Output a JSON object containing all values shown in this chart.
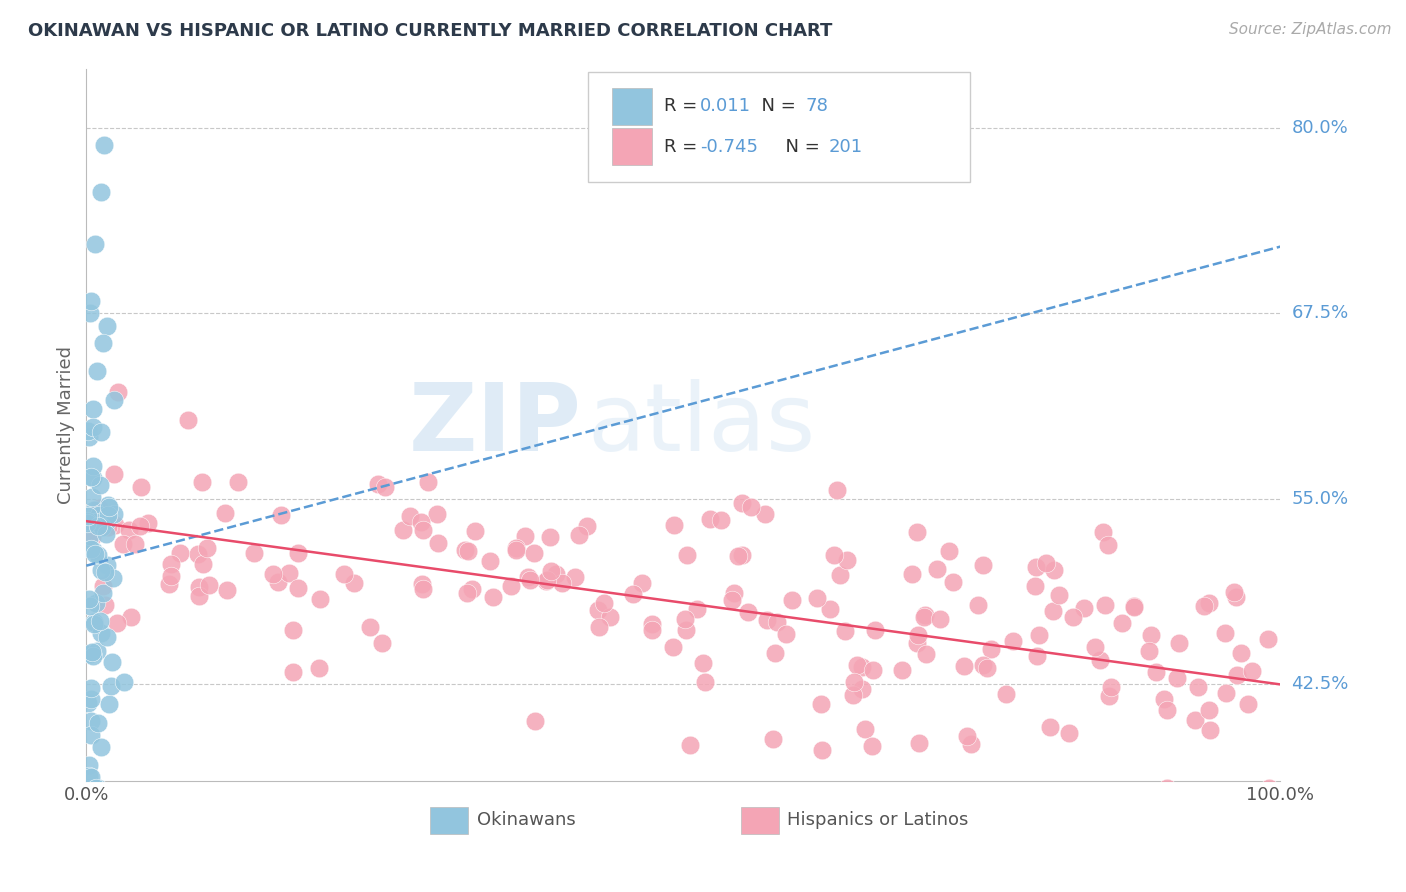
{
  "title": "OKINAWAN VS HISPANIC OR LATINO CURRENTLY MARRIED CORRELATION CHART",
  "source": "Source: ZipAtlas.com",
  "ylabel": "Currently Married",
  "xlim": [
    0.0,
    1.0
  ],
  "ylim": [
    0.36,
    0.84
  ],
  "yticks": [
    0.425,
    0.55,
    0.675,
    0.8
  ],
  "ytick_labels": [
    "42.5%",
    "55.0%",
    "67.5%",
    "80.0%"
  ],
  "xticks": [
    0.0,
    1.0
  ],
  "xtick_labels": [
    "0.0%",
    "100.0%"
  ],
  "legend_r1": "0.011",
  "legend_n1": "78",
  "legend_r2": "-0.745",
  "legend_n2": "201",
  "okinawan_color": "#92C5DE",
  "hispanic_color": "#F4A5B5",
  "okinawan_line_color": "#5B9BD5",
  "hispanic_line_color": "#E84B6A",
  "background_color": "#FFFFFF",
  "grid_color": "#C8C8C8",
  "title_color": "#2D3A4A",
  "watermark_zip": "ZIP",
  "watermark_atlas": "atlas",
  "series1_label": "Okinawans",
  "series2_label": "Hispanics or Latinos",
  "seed": 42,
  "n_okinawan": 78,
  "n_hispanic": 201,
  "ok_trend_x0": 0.0,
  "ok_trend_y0": 0.505,
  "ok_trend_x1": 1.0,
  "ok_trend_y1": 0.72,
  "hisp_trend_x0": 0.0,
  "hisp_trend_y0": 0.535,
  "hisp_trend_x1": 1.0,
  "hisp_trend_y1": 0.425
}
